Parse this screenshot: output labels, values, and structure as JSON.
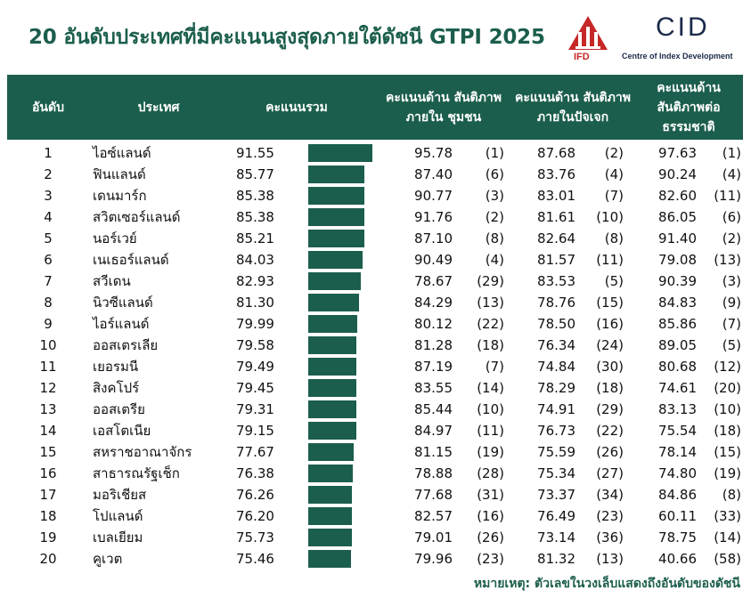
{
  "title": "20 อันดับประเทศที่มีคะแนนสูงสุดภายใต้ดัชนี GTPI 2025",
  "logos": {
    "ifd": "IFD",
    "cid": "CID",
    "cid_sub": "Centre of Index Development"
  },
  "colors": {
    "primary": "#1c5e4d",
    "ifd_red": "#c62828"
  },
  "headers": {
    "rank": "อันดับ",
    "country": "ประเทศ",
    "total": "คะแนนรวม",
    "dim1": "คะแนนด้าน สันติภาพภายใน ชุมชน",
    "dim2": "คะแนนด้าน สันติภาพ ภายในปัจเจก",
    "dim3": "คะแนนด้าน สันติภาพต่อ ธรรมชาติ"
  },
  "footer": "หมายเหตุ: ตัวเลขในวงเล็บแสดงถึงอันดับของดัชนี",
  "chart_data": {
    "type": "table",
    "bar_scale_max": 91.55,
    "rows": [
      {
        "rank": "1",
        "country": "ไอซ์แลนด์",
        "total": 91.55,
        "d1": "95.78",
        "r1": "(1)",
        "d2": "87.68",
        "r2": "(2)",
        "d3": "97.63",
        "r3": "(1)"
      },
      {
        "rank": "2",
        "country": "ฟินแลนด์",
        "total": 85.77,
        "d1": "87.40",
        "r1": "(6)",
        "d2": "83.76",
        "r2": "(4)",
        "d3": "90.24",
        "r3": "(4)"
      },
      {
        "rank": "3",
        "country": "เดนมาร์ก",
        "total": 85.38,
        "d1": "90.77",
        "r1": "(3)",
        "d2": "83.01",
        "r2": "(7)",
        "d3": "82.60",
        "r3": "(11)"
      },
      {
        "rank": "4",
        "country": "สวิตเซอร์แลนด์",
        "total": 85.38,
        "d1": "91.76",
        "r1": "(2)",
        "d2": "81.61",
        "r2": "(10)",
        "d3": "86.05",
        "r3": "(6)"
      },
      {
        "rank": "5",
        "country": "นอร์เวย์",
        "total": 85.21,
        "d1": "87.10",
        "r1": "(8)",
        "d2": "82.64",
        "r2": "(8)",
        "d3": "91.40",
        "r3": "(2)"
      },
      {
        "rank": "6",
        "country": "เนเธอร์แลนด์",
        "total": 84.03,
        "d1": "90.49",
        "r1": "(4)",
        "d2": "81.57",
        "r2": "(11)",
        "d3": "79.08",
        "r3": "(13)"
      },
      {
        "rank": "7",
        "country": "สวีเดน",
        "total": 82.93,
        "d1": "78.67",
        "r1": "(29)",
        "d2": "83.53",
        "r2": "(5)",
        "d3": "90.39",
        "r3": "(3)"
      },
      {
        "rank": "8",
        "country": "นิวซีแลนด์",
        "total": 81.3,
        "d1": "84.29",
        "r1": "(13)",
        "d2": "78.76",
        "r2": "(15)",
        "d3": "84.83",
        "r3": "(9)"
      },
      {
        "rank": "9",
        "country": "ไอร์แลนด์",
        "total": 79.99,
        "d1": "80.12",
        "r1": "(22)",
        "d2": "78.50",
        "r2": "(16)",
        "d3": "85.86",
        "r3": "(7)"
      },
      {
        "rank": "10",
        "country": "ออสเตรเลีย",
        "total": 79.58,
        "d1": "81.28",
        "r1": "(18)",
        "d2": "76.34",
        "r2": "(24)",
        "d3": "89.05",
        "r3": "(5)"
      },
      {
        "rank": "11",
        "country": "เยอรมนี",
        "total": 79.49,
        "d1": "87.19",
        "r1": "(7)",
        "d2": "74.84",
        "r2": "(30)",
        "d3": "80.68",
        "r3": "(12)"
      },
      {
        "rank": "12",
        "country": "สิงคโปร์",
        "total": 79.45,
        "d1": "83.55",
        "r1": "(14)",
        "d2": "78.29",
        "r2": "(18)",
        "d3": "74.61",
        "r3": "(20)"
      },
      {
        "rank": "13",
        "country": "ออสเตรีย",
        "total": 79.31,
        "d1": "85.44",
        "r1": "(10)",
        "d2": "74.91",
        "r2": "(29)",
        "d3": "83.13",
        "r3": "(10)"
      },
      {
        "rank": "14",
        "country": "เอสโตเนีย",
        "total": 79.15,
        "d1": "84.97",
        "r1": "(11)",
        "d2": "76.73",
        "r2": "(22)",
        "d3": "75.54",
        "r3": "(18)"
      },
      {
        "rank": "15",
        "country": "สหราชอาณาจักร",
        "total": 77.67,
        "d1": "81.15",
        "r1": "(19)",
        "d2": "75.59",
        "r2": "(26)",
        "d3": "78.14",
        "r3": "(15)"
      },
      {
        "rank": "16",
        "country": "สาธารณรัฐเช็ก",
        "total": 76.38,
        "d1": "78.88",
        "r1": "(28)",
        "d2": "75.34",
        "r2": "(27)",
        "d3": "74.80",
        "r3": "(19)"
      },
      {
        "rank": "17",
        "country": "มอริเชียส",
        "total": 76.26,
        "d1": "77.68",
        "r1": "(31)",
        "d2": "73.37",
        "r2": "(34)",
        "d3": "84.86",
        "r3": "(8)"
      },
      {
        "rank": "18",
        "country": "โปแลนด์",
        "total": 76.2,
        "d1": "82.57",
        "r1": "(16)",
        "d2": "76.49",
        "r2": "(23)",
        "d3": "60.11",
        "r3": "(33)"
      },
      {
        "rank": "19",
        "country": "เบลเยียม",
        "total": 75.73,
        "d1": "79.01",
        "r1": "(26)",
        "d2": "73.14",
        "r2": "(36)",
        "d3": "78.75",
        "r3": "(14)"
      },
      {
        "rank": "20",
        "country": "คูเวต",
        "total": 75.46,
        "d1": "79.96",
        "r1": "(23)",
        "d2": "81.32",
        "r2": "(13)",
        "d3": "40.66",
        "r3": "(58)"
      }
    ]
  }
}
